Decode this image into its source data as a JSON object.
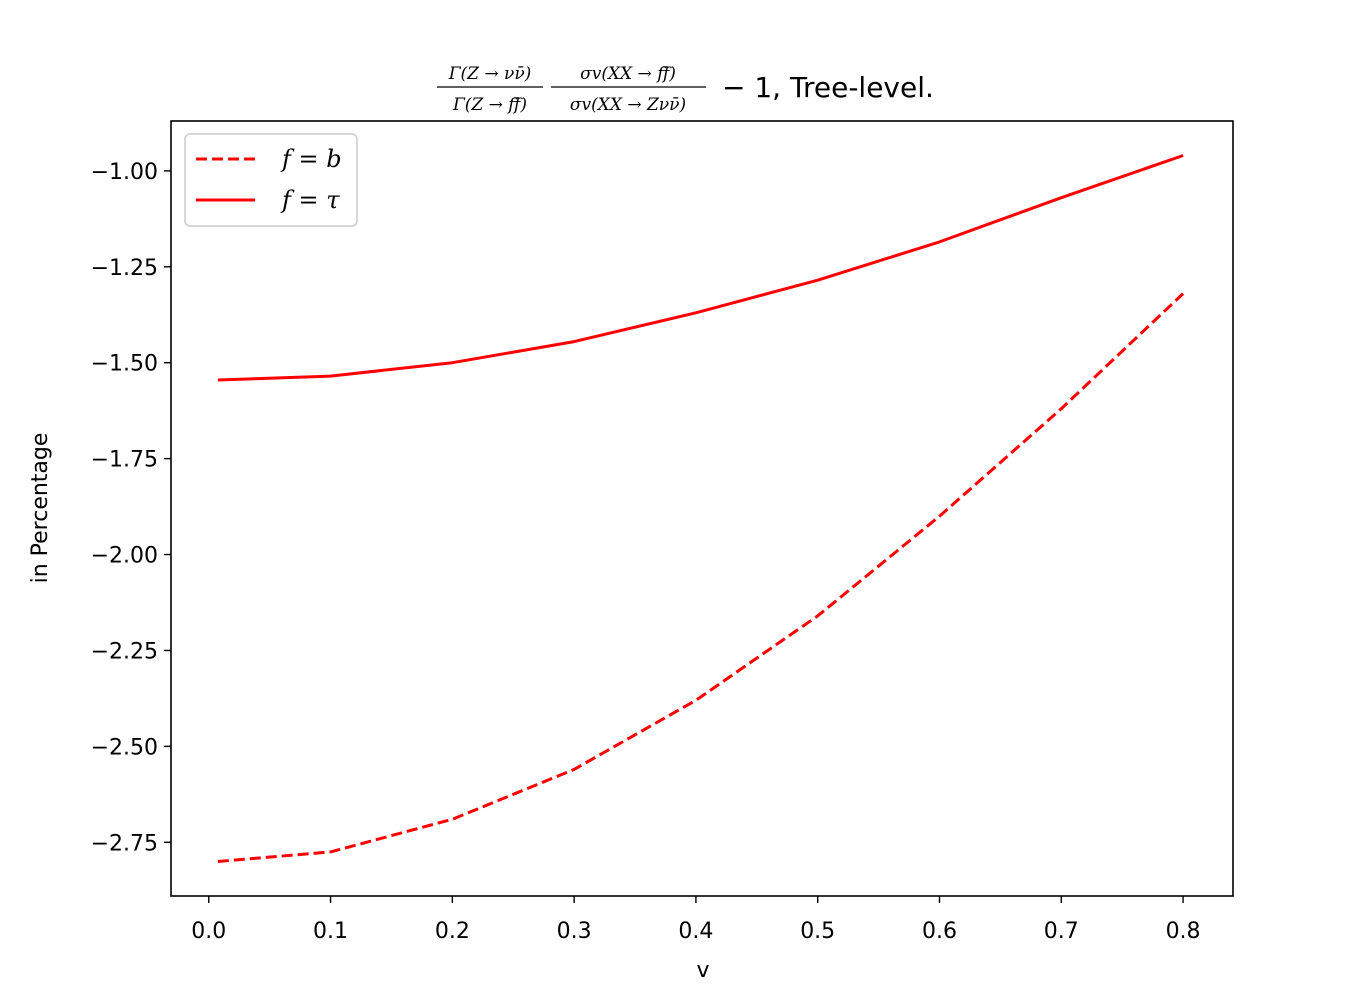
{
  "chart_data": {
    "type": "line",
    "title": {
      "frac1_num": "Γ(Z → νν̄)",
      "frac1_den": "Γ(Z → ff̄)",
      "frac2_num": "σv(XX → ff̄)",
      "frac2_den": "σv(XX → Zνν̄)",
      "suffix": "− 1, Tree-level."
    },
    "xlabel": "v",
    "ylabel": "in Percentage",
    "xlim": [
      -0.031,
      0.841
    ],
    "ylim": [
      -2.89,
      -0.87
    ],
    "xticks": [
      0.0,
      0.1,
      0.2,
      0.3,
      0.4,
      0.5,
      0.6,
      0.7,
      0.8
    ],
    "xtick_labels": [
      "0.0",
      "0.1",
      "0.2",
      "0.3",
      "0.4",
      "0.5",
      "0.6",
      "0.7",
      "0.8"
    ],
    "yticks": [
      -1.0,
      -1.25,
      -1.5,
      -1.75,
      -2.0,
      -2.25,
      -2.5,
      -2.75
    ],
    "ytick_labels": [
      "−1.00",
      "−1.25",
      "−1.50",
      "−1.75",
      "−2.00",
      "−2.25",
      "−2.50",
      "−2.75"
    ],
    "grid": false,
    "legend_position": "top-left",
    "series": [
      {
        "name": "f = b",
        "color": "#ff0000",
        "style": "dashed",
        "x": [
          0.0075,
          0.1,
          0.2,
          0.3,
          0.4,
          0.5,
          0.6,
          0.7,
          0.8
        ],
        "y": [
          -2.8,
          -2.775,
          -2.69,
          -2.56,
          -2.38,
          -2.16,
          -1.9,
          -1.62,
          -1.32
        ]
      },
      {
        "name": "f = τ",
        "color": "#ff0000",
        "style": "solid",
        "x": [
          0.0075,
          0.1,
          0.2,
          0.3,
          0.4,
          0.5,
          0.6,
          0.7,
          0.8
        ],
        "y": [
          -1.545,
          -1.535,
          -1.5,
          -1.445,
          -1.37,
          -1.285,
          -1.185,
          -1.07,
          -0.96
        ]
      }
    ]
  }
}
